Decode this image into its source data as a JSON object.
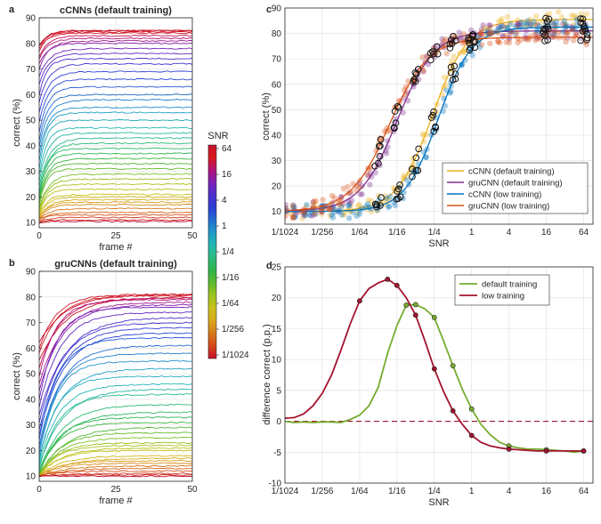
{
  "figure": {
    "panel_labels": [
      "a",
      "b",
      "c",
      "d"
    ]
  },
  "colorbar": {
    "title": "SNR",
    "ticks": [
      "64",
      "16",
      "4",
      "1",
      "1/4",
      "1/16",
      "1/64",
      "1/256",
      "1/1024"
    ],
    "colors": [
      "#c8102e",
      "#d7191c",
      "#b4127a",
      "#7a1fb8",
      "#4b2fcc",
      "#2a3fd6",
      "#1f6fd0",
      "#1f9bc8",
      "#22b8b0",
      "#2bbb7a",
      "#2fb64a",
      "#5dbb2b",
      "#9fc220",
      "#c9c21a",
      "#d9a81a",
      "#d8781a",
      "#d4461a",
      "#c8102e"
    ]
  },
  "chart_data": [
    {
      "id": "a",
      "type": "line",
      "title": "cCNNs (default training)",
      "xlabel": "frame #",
      "ylabel": "correct (%)",
      "xlim": [
        0,
        50
      ],
      "ylim": [
        8,
        90
      ],
      "xticks": [
        "0",
        "25",
        "50"
      ],
      "yticks": [
        "10",
        "20",
        "30",
        "40",
        "50",
        "60",
        "70",
        "80",
        "90"
      ],
      "series_summary": {
        "count": 44,
        "final_values": [
          85,
          85,
          84.5,
          84,
          83,
          82,
          81,
          80,
          78,
          76,
          74,
          72,
          69,
          66,
          63,
          60,
          58,
          55,
          53,
          50,
          47,
          45,
          43,
          41,
          39,
          37,
          35,
          33,
          31,
          29,
          27,
          25,
          23,
          21,
          20,
          19,
          18,
          17,
          15.5,
          14,
          13,
          12,
          11,
          10.5
        ],
        "start_values": [
          79,
          79,
          78,
          77,
          75,
          74,
          72,
          70,
          67,
          64,
          60,
          57,
          53,
          49,
          45,
          42,
          40,
          37,
          34,
          31,
          28,
          26,
          24,
          22,
          21,
          20,
          19,
          18,
          17,
          16,
          15,
          14,
          13.5,
          13,
          12.5,
          12,
          12,
          11.5,
          11,
          11,
          10.5,
          10.5,
          10,
          10
        ],
        "rate": 0.35
      }
    },
    {
      "id": "b",
      "type": "line",
      "title": "gruCNNs (default training)",
      "xlabel": "frame #",
      "ylabel": "correct (%)",
      "xlim": [
        0,
        50
      ],
      "ylim": [
        8,
        90
      ],
      "xticks": [
        "0",
        "25",
        "50"
      ],
      "yticks": [
        "10",
        "20",
        "30",
        "40",
        "50",
        "60",
        "70",
        "80",
        "90"
      ],
      "series_summary": {
        "count": 44,
        "final_values": [
          81,
          81,
          80.5,
          80,
          79.5,
          79,
          78,
          77,
          76,
          74,
          72,
          70,
          68,
          66,
          64,
          61,
          58,
          55,
          52,
          49,
          46,
          44,
          42,
          38,
          35,
          33,
          31,
          29,
          27,
          25,
          23,
          22,
          21,
          20,
          18,
          17,
          16,
          15,
          14,
          13,
          12,
          11,
          10.5,
          10
        ],
        "start_values": [
          62,
          60,
          58,
          55,
          52,
          49,
          46,
          43,
          40,
          37,
          34,
          31,
          28,
          26,
          24,
          22,
          20,
          18,
          17,
          16,
          15,
          14,
          13,
          12,
          11.5,
          11,
          11,
          10.5,
          10.5,
          10,
          10,
          10,
          10,
          10,
          10,
          10,
          10,
          10,
          10,
          10,
          10,
          10,
          10,
          10
        ],
        "rate": 0.14
      }
    },
    {
      "id": "c",
      "type": "line",
      "xlabel": "SNR",
      "ylabel": "correct (%)",
      "ylim": [
        5,
        90
      ],
      "x_log2": [
        -10,
        -8,
        -6,
        -4,
        -2,
        0,
        2,
        4,
        6
      ],
      "xticks": [
        "1/1024",
        "1/256",
        "1/64",
        "1/16",
        "1/4",
        "1",
        "4",
        "16",
        "64"
      ],
      "yticks": [
        "10",
        "20",
        "30",
        "40",
        "50",
        "60",
        "70",
        "80",
        "90"
      ],
      "legend": {
        "position": "bottom-right",
        "entries": [
          "cCNN (default training)",
          "gruCNN (default training)",
          "cCNN (low training)",
          "gruCNN (low training)"
        ]
      },
      "series": [
        {
          "name": "cCNN (default training)",
          "color": "#edb120",
          "min": 10,
          "max": 85.5,
          "mid": -2.1,
          "width": 0.95
        },
        {
          "name": "gruCNN (default training)",
          "color": "#7e2f8e",
          "min": 10,
          "max": 81,
          "mid": -4.0,
          "width": 1.0
        },
        {
          "name": "cCNN (low training)",
          "color": "#0072bd",
          "min": 10,
          "max": 82.5,
          "mid": -1.8,
          "width": 0.9
        },
        {
          "name": "gruCNN (low training)",
          "color": "#d95319",
          "min": 10,
          "max": 78.5,
          "mid": -4.4,
          "width": 1.05
        }
      ],
      "circled_points_log2": [
        -5,
        -4,
        -3,
        -2,
        -1,
        0,
        4,
        6
      ]
    },
    {
      "id": "d",
      "type": "line",
      "xlabel": "SNR",
      "ylabel": "difference correct (p.p.)",
      "ylim": [
        -10,
        25
      ],
      "xticks": [
        "1/1024",
        "1/256",
        "1/64",
        "1/16",
        "1/4",
        "1",
        "4",
        "16",
        "64"
      ],
      "yticks": [
        "-10",
        "-5",
        "0",
        "5",
        "10",
        "15",
        "20",
        "25"
      ],
      "legend": {
        "position": "top-right",
        "entries": [
          "default training",
          "low training"
        ]
      },
      "zero_line": {
        "value": 0,
        "color": "#a2142f",
        "dashed": true
      },
      "series": [
        {
          "name": "default training",
          "color": "#77ac30",
          "x_log2": [
            -10,
            -9.5,
            -9,
            -8.5,
            -8,
            -7.5,
            -7,
            -6.5,
            -6,
            -5.5,
            -5,
            -4.5,
            -4,
            -3.5,
            -3,
            -2.5,
            -2,
            -1.5,
            -1,
            -0.5,
            0,
            0.5,
            1,
            1.5,
            2,
            2.5,
            3,
            3.5,
            4,
            4.5,
            5,
            5.5,
            6
          ],
          "y": [
            0,
            -0.2,
            -0.1,
            -0.2,
            -0.1,
            -0.1,
            -0.2,
            0.3,
            1,
            2.5,
            5.5,
            11,
            15.5,
            18.8,
            18.9,
            18.2,
            16.8,
            13,
            9,
            5.2,
            2,
            -0.5,
            -2.2,
            -3.4,
            -4,
            -4.3,
            -4.5,
            -4.5,
            -4.6,
            -4.7,
            -4.8,
            -5,
            -4.8
          ],
          "marked_x_log2": [
            -3.5,
            -3,
            -2,
            -1,
            0,
            2,
            4,
            6
          ]
        },
        {
          "name": "low training",
          "color": "#a2142f",
          "x_log2": [
            -10,
            -9.5,
            -9,
            -8.5,
            -8,
            -7.5,
            -7,
            -6.5,
            -6,
            -5.5,
            -5,
            -4.5,
            -4,
            -3.5,
            -3,
            -2.5,
            -2,
            -1.5,
            -1,
            -0.5,
            0,
            0.5,
            1,
            1.5,
            2,
            2.5,
            3,
            3.5,
            4,
            4.5,
            5,
            5.5,
            6
          ],
          "y": [
            0.5,
            0.6,
            1.2,
            2.5,
            4.5,
            7.5,
            11.5,
            15.8,
            19.5,
            21.5,
            22.4,
            23,
            22,
            20,
            17.2,
            13,
            8.5,
            4.8,
            1.7,
            -0.5,
            -2.3,
            -3.4,
            -4,
            -4.3,
            -4.5,
            -4.6,
            -4.7,
            -4.8,
            -4.8,
            -4.8,
            -4.8,
            -4.8,
            -4.8
          ],
          "marked_x_log2": [
            -6,
            -4.5,
            -4,
            -3,
            -2,
            -1,
            0,
            2,
            4,
            6
          ]
        }
      ]
    }
  ]
}
